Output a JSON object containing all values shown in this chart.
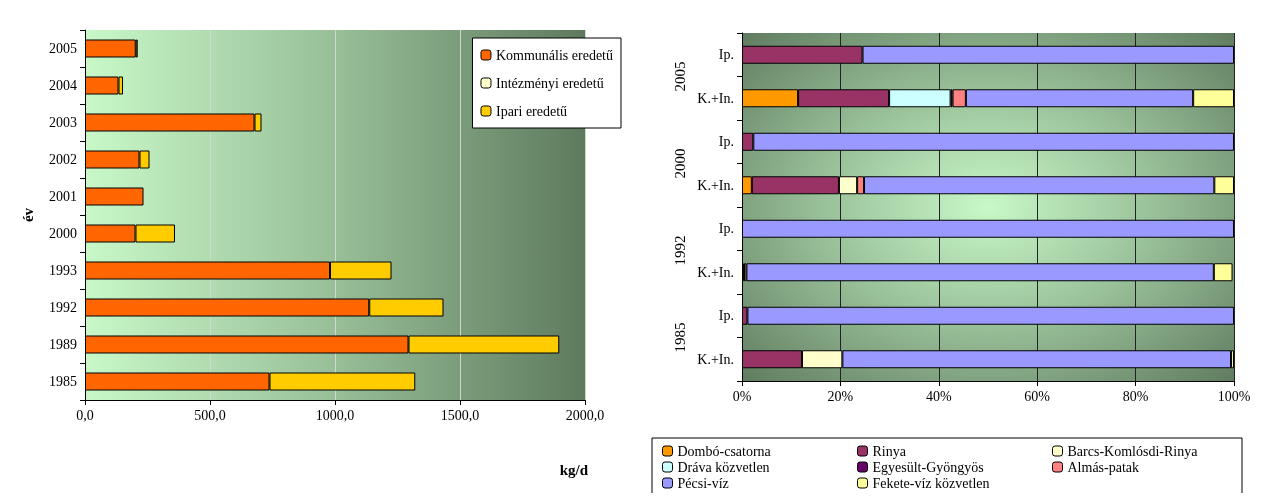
{
  "chart_data": [
    {
      "type": "bar",
      "orientation": "horizontal",
      "stacked": true,
      "xlabel": "kg/d",
      "ylabel": "év",
      "categories": [
        "2005",
        "2004",
        "2003",
        "2002",
        "2001",
        "2000",
        "1993",
        "1992",
        "1989",
        "1985"
      ],
      "series": [
        {
          "name": "Kommunális eredetű",
          "color": "#ff6600",
          "values": [
            203,
            134,
            678,
            218,
            234,
            202,
            980,
            1137,
            1294,
            738
          ]
        },
        {
          "name": "Intézményi eredetű",
          "color": "#ffffcc",
          "values": [
            8,
            null,
            null,
            null,
            null,
            null,
            null,
            null,
            null,
            null
          ]
        },
        {
          "name": "Ipari eredetű",
          "color": "#ffcc00",
          "values": [
            null,
            18,
            28,
            40,
            null,
            158,
            246,
            297,
            603,
            583
          ]
        }
      ],
      "xlim": [
        0,
        2000
      ],
      "xticks": [
        {
          "value": 0,
          "label": "0,0"
        },
        {
          "value": 500,
          "label": "500,0"
        },
        {
          "value": 1000,
          "label": "1000,0"
        },
        {
          "value": 1500,
          "label": "1500,0"
        },
        {
          "value": 2000,
          "label": "2000,0"
        }
      ],
      "grid": "x",
      "legend": "top right"
    },
    {
      "type": "bar",
      "orientation": "horizontal",
      "stacked": true,
      "categories": [
        "Ip.",
        "K.+In.",
        "Ip.",
        "K.+In.",
        "Ip.",
        "K.+In.",
        "Ip.",
        "K.+In."
      ],
      "annotations": [
        "2005",
        "2000",
        "1992",
        "1985"
      ],
      "series": [
        {
          "name": "Dombó-csatorna",
          "color": "#ff9900",
          "values": [
            null,
            11.4,
            null,
            2.0,
            null,
            null,
            null,
            null
          ]
        },
        {
          "name": "Rinya",
          "color": "#993366",
          "values": [
            24.5,
            18.5,
            2.3,
            17.7,
            null,
            null,
            1.1,
            12.2
          ]
        },
        {
          "name": "Barcs-Komlósdi-Rinya",
          "color": "#ffffcc",
          "values": [
            null,
            null,
            null,
            3.7,
            null,
            0.4,
            null,
            8.2
          ]
        },
        {
          "name": "Dráva közvetlen",
          "color": "#ccffff",
          "values": [
            null,
            12.5,
            null,
            null,
            null,
            null,
            null,
            null
          ]
        },
        {
          "name": "Egyesült-Gyöngyös",
          "color": "#660066",
          "values": [
            null,
            0.4,
            null,
            null,
            null,
            null,
            null,
            null
          ]
        },
        {
          "name": "Almás-patak",
          "color": "#ff8080",
          "values": [
            null,
            2.7,
            null,
            1.4,
            null,
            0.5,
            null,
            null
          ]
        },
        {
          "name": "Pécsi-víz",
          "color": "#9999ff",
          "values": [
            75.5,
            46.2,
            97.7,
            71.2,
            100,
            95.0,
            98.9,
            79.0
          ]
        },
        {
          "name": "Fekete-víz közvetlen",
          "color": "#ffff99",
          "values": [
            null,
            8.3,
            null,
            4.0,
            null,
            3.8,
            null,
            0.6
          ]
        }
      ],
      "xlim": [
        0,
        100
      ],
      "xticks": [
        {
          "value": 0,
          "label": "0%"
        },
        {
          "value": 20,
          "label": "20%"
        },
        {
          "value": 40,
          "label": "40%"
        },
        {
          "value": 60,
          "label": "60%"
        },
        {
          "value": 80,
          "label": "80%"
        },
        {
          "value": 100,
          "label": "100%"
        }
      ],
      "grid": "x",
      "legend": "bottom"
    }
  ]
}
